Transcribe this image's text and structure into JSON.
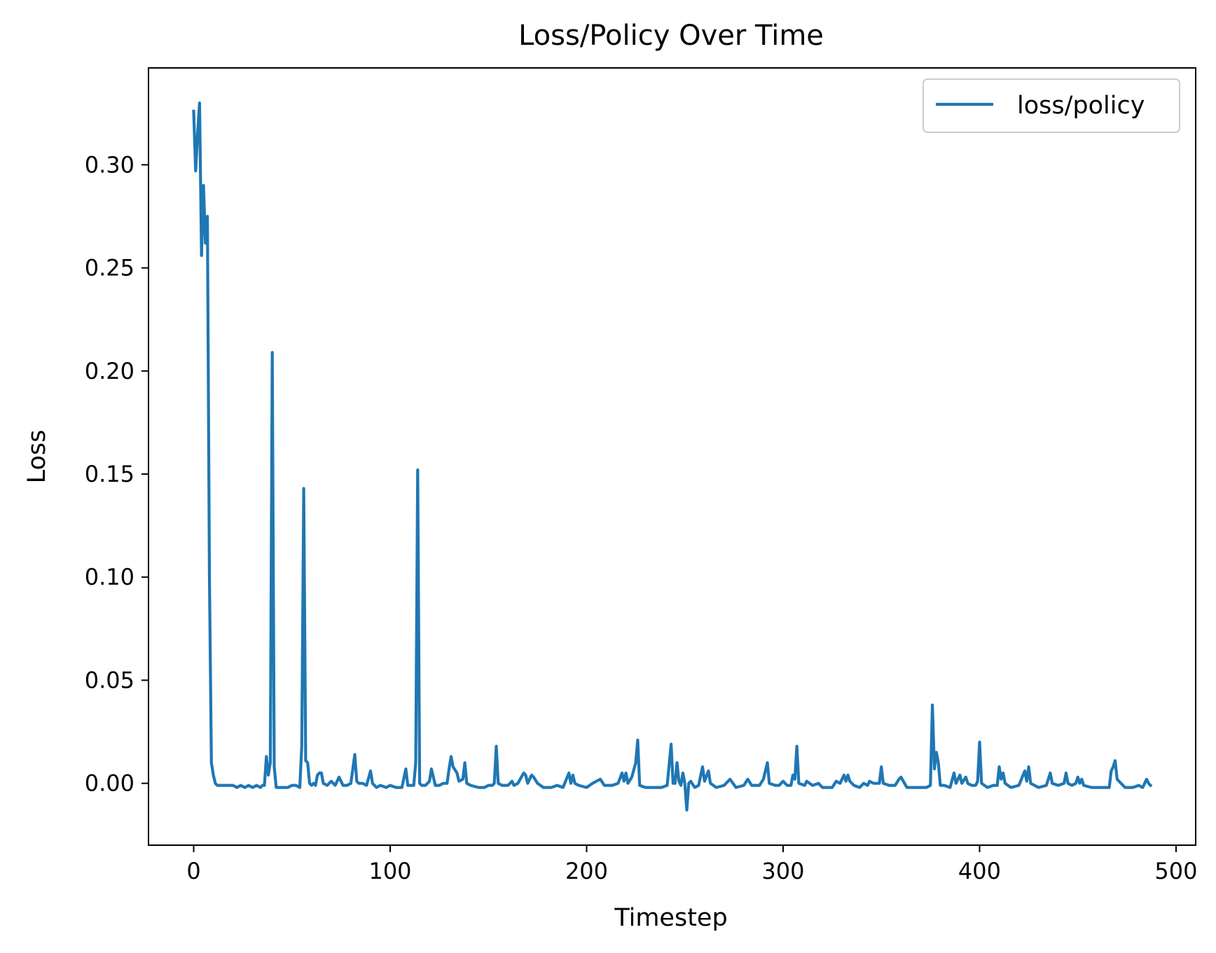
{
  "chart_data": {
    "type": "line",
    "title": "Loss/Policy Over Time",
    "xlabel": "Timestep",
    "ylabel": "Loss",
    "xlim": [
      -23,
      510
    ],
    "ylim": [
      -0.03,
      0.347
    ],
    "xticks": [
      0,
      100,
      200,
      300,
      400,
      500
    ],
    "xtick_labels": [
      "0",
      "100",
      "200",
      "300",
      "400",
      "500"
    ],
    "yticks": [
      0.0,
      0.05,
      0.1,
      0.15,
      0.2,
      0.25,
      0.3
    ],
    "ytick_labels": [
      "0.00",
      "0.05",
      "0.10",
      "0.15",
      "0.20",
      "0.25",
      "0.30"
    ],
    "grid": false,
    "legend": {
      "position": "top-right",
      "entries": [
        "loss/policy"
      ]
    },
    "colors": {
      "series": "#1f77b4",
      "axes": "#000000",
      "legend_border": "#cccccc"
    },
    "series": [
      {
        "name": "loss/policy",
        "points": [
          [
            0,
            0.326
          ],
          [
            1,
            0.297
          ],
          [
            2,
            0.315
          ],
          [
            3,
            0.33
          ],
          [
            4,
            0.256
          ],
          [
            5,
            0.29
          ],
          [
            6,
            0.262
          ],
          [
            7,
            0.275
          ],
          [
            8,
            0.1
          ],
          [
            9,
            0.01
          ],
          [
            10,
            0.004
          ],
          [
            11,
            0.0
          ],
          [
            12,
            -0.001
          ],
          [
            14,
            -0.001
          ],
          [
            16,
            -0.001
          ],
          [
            18,
            -0.001
          ],
          [
            20,
            -0.001
          ],
          [
            22,
            -0.002
          ],
          [
            24,
            -0.001
          ],
          [
            26,
            -0.002
          ],
          [
            28,
            -0.001
          ],
          [
            30,
            -0.002
          ],
          [
            32,
            -0.001
          ],
          [
            34,
            -0.002
          ],
          [
            35,
            -0.001
          ],
          [
            36,
            -0.001
          ],
          [
            37,
            0.013
          ],
          [
            38,
            0.004
          ],
          [
            39,
            0.01
          ],
          [
            40,
            0.209
          ],
          [
            41,
            0.008
          ],
          [
            42,
            -0.002
          ],
          [
            44,
            -0.002
          ],
          [
            46,
            -0.002
          ],
          [
            48,
            -0.002
          ],
          [
            50,
            -0.001
          ],
          [
            52,
            -0.001
          ],
          [
            54,
            -0.002
          ],
          [
            55,
            0.018
          ],
          [
            56,
            0.143
          ],
          [
            57,
            0.011
          ],
          [
            58,
            0.01
          ],
          [
            59,
            0.0
          ],
          [
            60,
            -0.001
          ],
          [
            61,
            0.0
          ],
          [
            62,
            -0.001
          ],
          [
            63,
            0.004
          ],
          [
            64,
            0.005
          ],
          [
            65,
            0.005
          ],
          [
            66,
            0.0
          ],
          [
            68,
            -0.001
          ],
          [
            70,
            0.001
          ],
          [
            72,
            -0.001
          ],
          [
            74,
            0.003
          ],
          [
            76,
            -0.001
          ],
          [
            78,
            -0.001
          ],
          [
            80,
            0.0
          ],
          [
            82,
            0.014
          ],
          [
            83,
            0.001
          ],
          [
            84,
            0.0
          ],
          [
            86,
            0.0
          ],
          [
            88,
            -0.001
          ],
          [
            90,
            0.006
          ],
          [
            91,
            0.0
          ],
          [
            93,
            -0.002
          ],
          [
            95,
            -0.001
          ],
          [
            98,
            -0.002
          ],
          [
            100,
            -0.001
          ],
          [
            103,
            -0.002
          ],
          [
            106,
            -0.002
          ],
          [
            108,
            0.007
          ],
          [
            109,
            -0.001
          ],
          [
            112,
            -0.001
          ],
          [
            113,
            0.01
          ],
          [
            114,
            0.152
          ],
          [
            115,
            0.0
          ],
          [
            116,
            -0.001
          ],
          [
            118,
            -0.001
          ],
          [
            120,
            0.001
          ],
          [
            121,
            0.007
          ],
          [
            123,
            -0.001
          ],
          [
            125,
            -0.001
          ],
          [
            127,
            0.0
          ],
          [
            129,
            0.0
          ],
          [
            130,
            0.007
          ],
          [
            131,
            0.013
          ],
          [
            132,
            0.008
          ],
          [
            134,
            0.005
          ],
          [
            135,
            0.001
          ],
          [
            137,
            0.002
          ],
          [
            138,
            0.01
          ],
          [
            139,
            0.0
          ],
          [
            141,
            -0.001
          ],
          [
            145,
            -0.002
          ],
          [
            148,
            -0.002
          ],
          [
            150,
            -0.001
          ],
          [
            152,
            -0.001
          ],
          [
            153,
            0.0
          ],
          [
            154,
            0.018
          ],
          [
            155,
            0.0
          ],
          [
            157,
            -0.001
          ],
          [
            160,
            -0.001
          ],
          [
            162,
            0.001
          ],
          [
            163,
            -0.001
          ],
          [
            165,
            0.0
          ],
          [
            168,
            0.005
          ],
          [
            169,
            0.004
          ],
          [
            170,
            0.0
          ],
          [
            172,
            0.004
          ],
          [
            173,
            0.003
          ],
          [
            175,
            0.0
          ],
          [
            178,
            -0.002
          ],
          [
            182,
            -0.002
          ],
          [
            185,
            -0.001
          ],
          [
            188,
            -0.002
          ],
          [
            191,
            0.005
          ],
          [
            192,
            0.0
          ],
          [
            193,
            0.004
          ],
          [
            194,
            0.0
          ],
          [
            196,
            -0.001
          ],
          [
            200,
            -0.002
          ],
          [
            203,
            0.0
          ],
          [
            205,
            0.001
          ],
          [
            207,
            0.002
          ],
          [
            209,
            -0.001
          ],
          [
            213,
            -0.001
          ],
          [
            216,
            0.0
          ],
          [
            218,
            0.005
          ],
          [
            219,
            0.001
          ],
          [
            220,
            0.005
          ],
          [
            221,
            0.0
          ],
          [
            223,
            0.003
          ],
          [
            225,
            0.01
          ],
          [
            226,
            0.021
          ],
          [
            227,
            -0.001
          ],
          [
            230,
            -0.002
          ],
          [
            234,
            -0.002
          ],
          [
            238,
            -0.002
          ],
          [
            241,
            -0.001
          ],
          [
            243,
            0.019
          ],
          [
            244,
            0.0
          ],
          [
            245,
            0.0
          ],
          [
            246,
            0.01
          ],
          [
            247,
            0.001
          ],
          [
            248,
            -0.001
          ],
          [
            249,
            0.005
          ],
          [
            250,
            0.0
          ],
          [
            251,
            -0.013
          ],
          [
            252,
            0.0
          ],
          [
            253,
            0.001
          ],
          [
            255,
            -0.002
          ],
          [
            257,
            -0.001
          ],
          [
            259,
            0.008
          ],
          [
            260,
            0.001
          ],
          [
            262,
            0.006
          ],
          [
            263,
            0.0
          ],
          [
            266,
            -0.002
          ],
          [
            270,
            -0.001
          ],
          [
            273,
            0.002
          ],
          [
            276,
            -0.002
          ],
          [
            280,
            -0.001
          ],
          [
            282,
            0.002
          ],
          [
            284,
            -0.001
          ],
          [
            288,
            -0.001
          ],
          [
            290,
            0.002
          ],
          [
            292,
            0.01
          ],
          [
            293,
            0.0
          ],
          [
            296,
            -0.001
          ],
          [
            298,
            -0.001
          ],
          [
            300,
            0.001
          ],
          [
            302,
            -0.001
          ],
          [
            304,
            -0.001
          ],
          [
            305,
            0.004
          ],
          [
            306,
            0.002
          ],
          [
            307,
            0.018
          ],
          [
            308,
            0.0
          ],
          [
            311,
            -0.001
          ],
          [
            312,
            0.001
          ],
          [
            315,
            -0.001
          ],
          [
            318,
            0.0
          ],
          [
            320,
            -0.002
          ],
          [
            325,
            -0.002
          ],
          [
            327,
            0.001
          ],
          [
            329,
            0.0
          ],
          [
            331,
            0.004
          ],
          [
            332,
            0.001
          ],
          [
            333,
            0.004
          ],
          [
            334,
            0.001
          ],
          [
            336,
            -0.001
          ],
          [
            339,
            -0.002
          ],
          [
            341,
            0.0
          ],
          [
            343,
            -0.001
          ],
          [
            344,
            0.001
          ],
          [
            346,
            0.0
          ],
          [
            349,
            0.0
          ],
          [
            350,
            0.008
          ],
          [
            351,
            0.0
          ],
          [
            354,
            -0.001
          ],
          [
            357,
            -0.001
          ],
          [
            359,
            0.002
          ],
          [
            360,
            0.003
          ],
          [
            363,
            -0.002
          ],
          [
            368,
            -0.002
          ],
          [
            373,
            -0.002
          ],
          [
            375,
            -0.001
          ],
          [
            376,
            0.038
          ],
          [
            377,
            0.007
          ],
          [
            378,
            0.015
          ],
          [
            379,
            0.01
          ],
          [
            380,
            -0.001
          ],
          [
            382,
            -0.001
          ],
          [
            385,
            -0.002
          ],
          [
            387,
            0.005
          ],
          [
            388,
            0.0
          ],
          [
            390,
            0.004
          ],
          [
            391,
            0.0
          ],
          [
            393,
            0.003
          ],
          [
            394,
            0.0
          ],
          [
            396,
            -0.001
          ],
          [
            398,
            -0.001
          ],
          [
            399,
            0.001
          ],
          [
            400,
            0.02
          ],
          [
            401,
            0.0
          ],
          [
            404,
            -0.002
          ],
          [
            407,
            -0.001
          ],
          [
            409,
            -0.001
          ],
          [
            410,
            0.008
          ],
          [
            411,
            0.002
          ],
          [
            412,
            0.005
          ],
          [
            413,
            0.0
          ],
          [
            416,
            -0.002
          ],
          [
            420,
            -0.001
          ],
          [
            423,
            0.006
          ],
          [
            424,
            0.001
          ],
          [
            425,
            0.008
          ],
          [
            426,
            0.0
          ],
          [
            430,
            -0.002
          ],
          [
            434,
            -0.001
          ],
          [
            436,
            0.005
          ],
          [
            437,
            0.0
          ],
          [
            440,
            -0.001
          ],
          [
            443,
            0.0
          ],
          [
            444,
            0.005
          ],
          [
            445,
            0.0
          ],
          [
            447,
            -0.001
          ],
          [
            449,
            0.0
          ],
          [
            450,
            0.003
          ],
          [
            451,
            0.0
          ],
          [
            452,
            0.002
          ],
          [
            453,
            -0.001
          ],
          [
            457,
            -0.002
          ],
          [
            463,
            -0.002
          ],
          [
            466,
            -0.002
          ],
          [
            467,
            0.006
          ],
          [
            468,
            0.008
          ],
          [
            469,
            0.011
          ],
          [
            470,
            0.002
          ],
          [
            472,
            0.0
          ],
          [
            474,
            -0.002
          ],
          [
            478,
            -0.002
          ],
          [
            481,
            -0.001
          ],
          [
            483,
            -0.002
          ],
          [
            485,
            0.002
          ],
          [
            486,
            0.0
          ],
          [
            487,
            -0.001
          ]
        ]
      }
    ]
  }
}
